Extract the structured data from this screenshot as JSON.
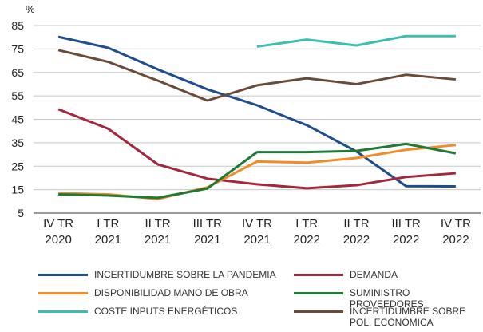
{
  "chart_data": {
    "type": "line",
    "y_label": "%",
    "categories": [
      "IV TR 2020",
      "I TR 2021",
      "II TR 2021",
      "III TR 2021",
      "IV TR 2021",
      "I TR 2022",
      "II TR 2022",
      "III TR 2022",
      "IV TR 2022"
    ],
    "ylim": [
      5,
      85
    ],
    "yticks": [
      5,
      15,
      25,
      35,
      45,
      55,
      65,
      75,
      85
    ],
    "grid": true,
    "series": [
      {
        "name": "INCERTIDUMBRE SOBRE LA PANDEMIA",
        "color": "#1f4e8c",
        "values": [
          80.2,
          75.5,
          66.3,
          57.8,
          51,
          42.5,
          31.3,
          16.5,
          16.4
        ]
      },
      {
        "name": "DEMANDA",
        "color": "#a3283e",
        "values": [
          49.3,
          41,
          25.8,
          19.7,
          17.3,
          15.6,
          16.9,
          20.4,
          22
        ]
      },
      {
        "name": "DISPONIBILIDAD MANO DE OBRA",
        "color": "#f28c28",
        "values": [
          13.5,
          13,
          11,
          16,
          27,
          26.5,
          28.5,
          32,
          34
        ]
      },
      {
        "name": "SUMINISTRO PROVEEDORES",
        "color": "#1e7a35",
        "values": [
          13,
          12.5,
          11.5,
          15.5,
          31,
          31,
          31.5,
          34.5,
          30.5
        ]
      },
      {
        "name": "COSTE INPUTS ENERGÉTICOS",
        "color": "#3cbfb0",
        "values": [
          null,
          null,
          null,
          null,
          76,
          79,
          76.5,
          80.5,
          80.5
        ]
      },
      {
        "name": "INCERTIDUMBRE SOBRE POL. ECONÓMICA",
        "color": "#6b4a3a",
        "values": [
          74.5,
          69.5,
          61.5,
          53,
          59.5,
          62.5,
          60,
          64,
          62
        ]
      }
    ]
  }
}
